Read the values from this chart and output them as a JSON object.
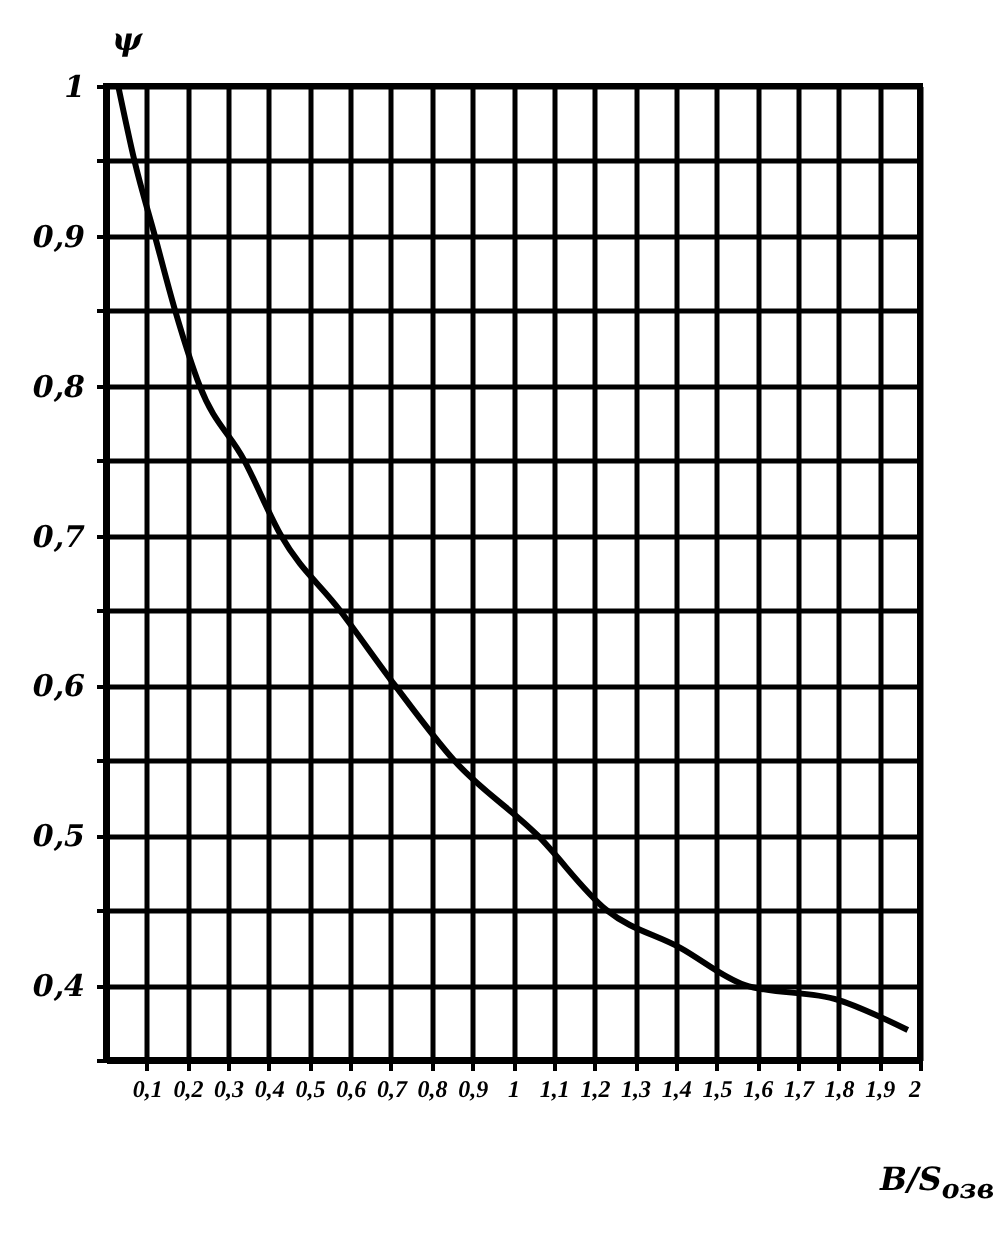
{
  "chart_data": {
    "type": "line",
    "xlabel": "B/S$_{озв}$",
    "ylabel": "ψ",
    "x": [
      0.03,
      0.07,
      0.12,
      0.17,
      0.23,
      0.34,
      0.43,
      0.575,
      0.71,
      0.855,
      1.06,
      1.23,
      1.41,
      1.57,
      1.8,
      1.97
    ],
    "series": [
      {
        "color": "#000000",
        "values": [
          1,
          0.95,
          0.9,
          0.85,
          0.8,
          0.75,
          0.7,
          0.65,
          0.6,
          0.55,
          0.5,
          0.45,
          0.425,
          0.4,
          0.39,
          0.37
        ]
      }
    ],
    "xlim": [
      0,
      2
    ],
    "ylim": [
      0.35,
      1
    ],
    "xticks": [
      {
        "value": 0.1,
        "label": "0,1"
      },
      {
        "value": 0.2,
        "label": "0,2"
      },
      {
        "value": 0.3,
        "label": "0,3"
      },
      {
        "value": 0.4,
        "label": "0,4"
      },
      {
        "value": 0.5,
        "label": "0,5"
      },
      {
        "value": 0.6,
        "label": "0,6"
      },
      {
        "value": 0.7,
        "label": "0,7"
      },
      {
        "value": 0.8,
        "label": "0,8"
      },
      {
        "value": 0.9,
        "label": "0,9"
      },
      1,
      {
        "value": 1.1,
        "label": "1,1"
      },
      {
        "value": 1.2,
        "label": "1,2"
      },
      {
        "value": 1.3,
        "label": "1,3"
      },
      {
        "value": 1.4,
        "label": "1,4"
      },
      {
        "value": 1.5,
        "label": "1,5"
      },
      {
        "value": 1.6,
        "label": "1,6"
      },
      {
        "value": 1.7,
        "label": "1,7"
      },
      {
        "value": 1.8,
        "label": "1,8"
      },
      {
        "value": 1.9,
        "label": "1,9"
      },
      2
    ],
    "yticks": [
      {
        "value": 0.35,
        "label": null
      },
      {
        "value": 0.4,
        "label": "0,4"
      },
      {
        "value": 0.45,
        "label": null
      },
      {
        "value": 0.5,
        "label": "0,5"
      },
      {
        "value": 0.55,
        "label": null
      },
      {
        "value": 0.6,
        "label": "0,6"
      },
      {
        "value": 0.65,
        "label": null
      },
      {
        "value": 0.7,
        "label": "0,7"
      },
      {
        "value": 0.75,
        "label": null
      },
      {
        "value": 0.8,
        "label": "0,8"
      },
      {
        "value": 0.85,
        "label": null
      },
      {
        "value": 0.9,
        "label": "0,9"
      },
      {
        "value": 0.95,
        "label": null
      },
      1
    ],
    "grid": true,
    "marker": "none",
    "line_style": "solid"
  }
}
